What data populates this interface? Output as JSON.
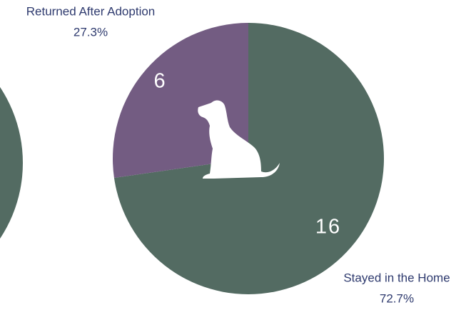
{
  "chart_data": {
    "type": "pie",
    "categories": [
      "Stayed in the Home",
      "Returned After Adoption"
    ],
    "values": [
      16,
      6
    ],
    "percent_labels": [
      "72.7%",
      "27.3%"
    ],
    "colors": [
      "#536b62",
      "#735c82"
    ]
  }
}
